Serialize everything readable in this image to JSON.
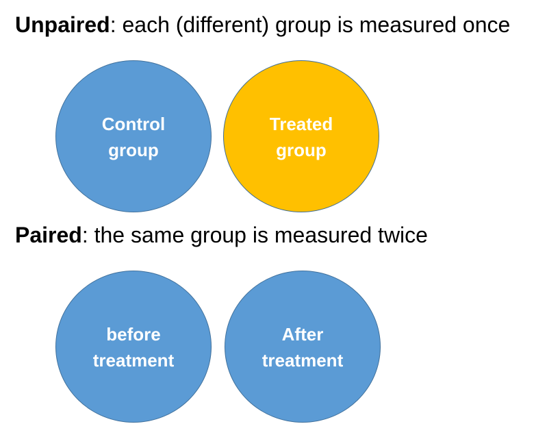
{
  "unpaired": {
    "term": "Unpaired",
    "description": ": each (different) group is measured once",
    "circles": [
      {
        "label": "Control\ngroup",
        "color": "#5b9bd5"
      },
      {
        "label": "Treated\ngroup",
        "color": "#ffc000"
      }
    ]
  },
  "paired": {
    "term": "Paired",
    "description": ": the same group is measured twice",
    "circles": [
      {
        "label": "before\ntreatment",
        "color": "#5b9bd5"
      },
      {
        "label": "After\ntreatment",
        "color": "#5b9bd5"
      }
    ]
  }
}
